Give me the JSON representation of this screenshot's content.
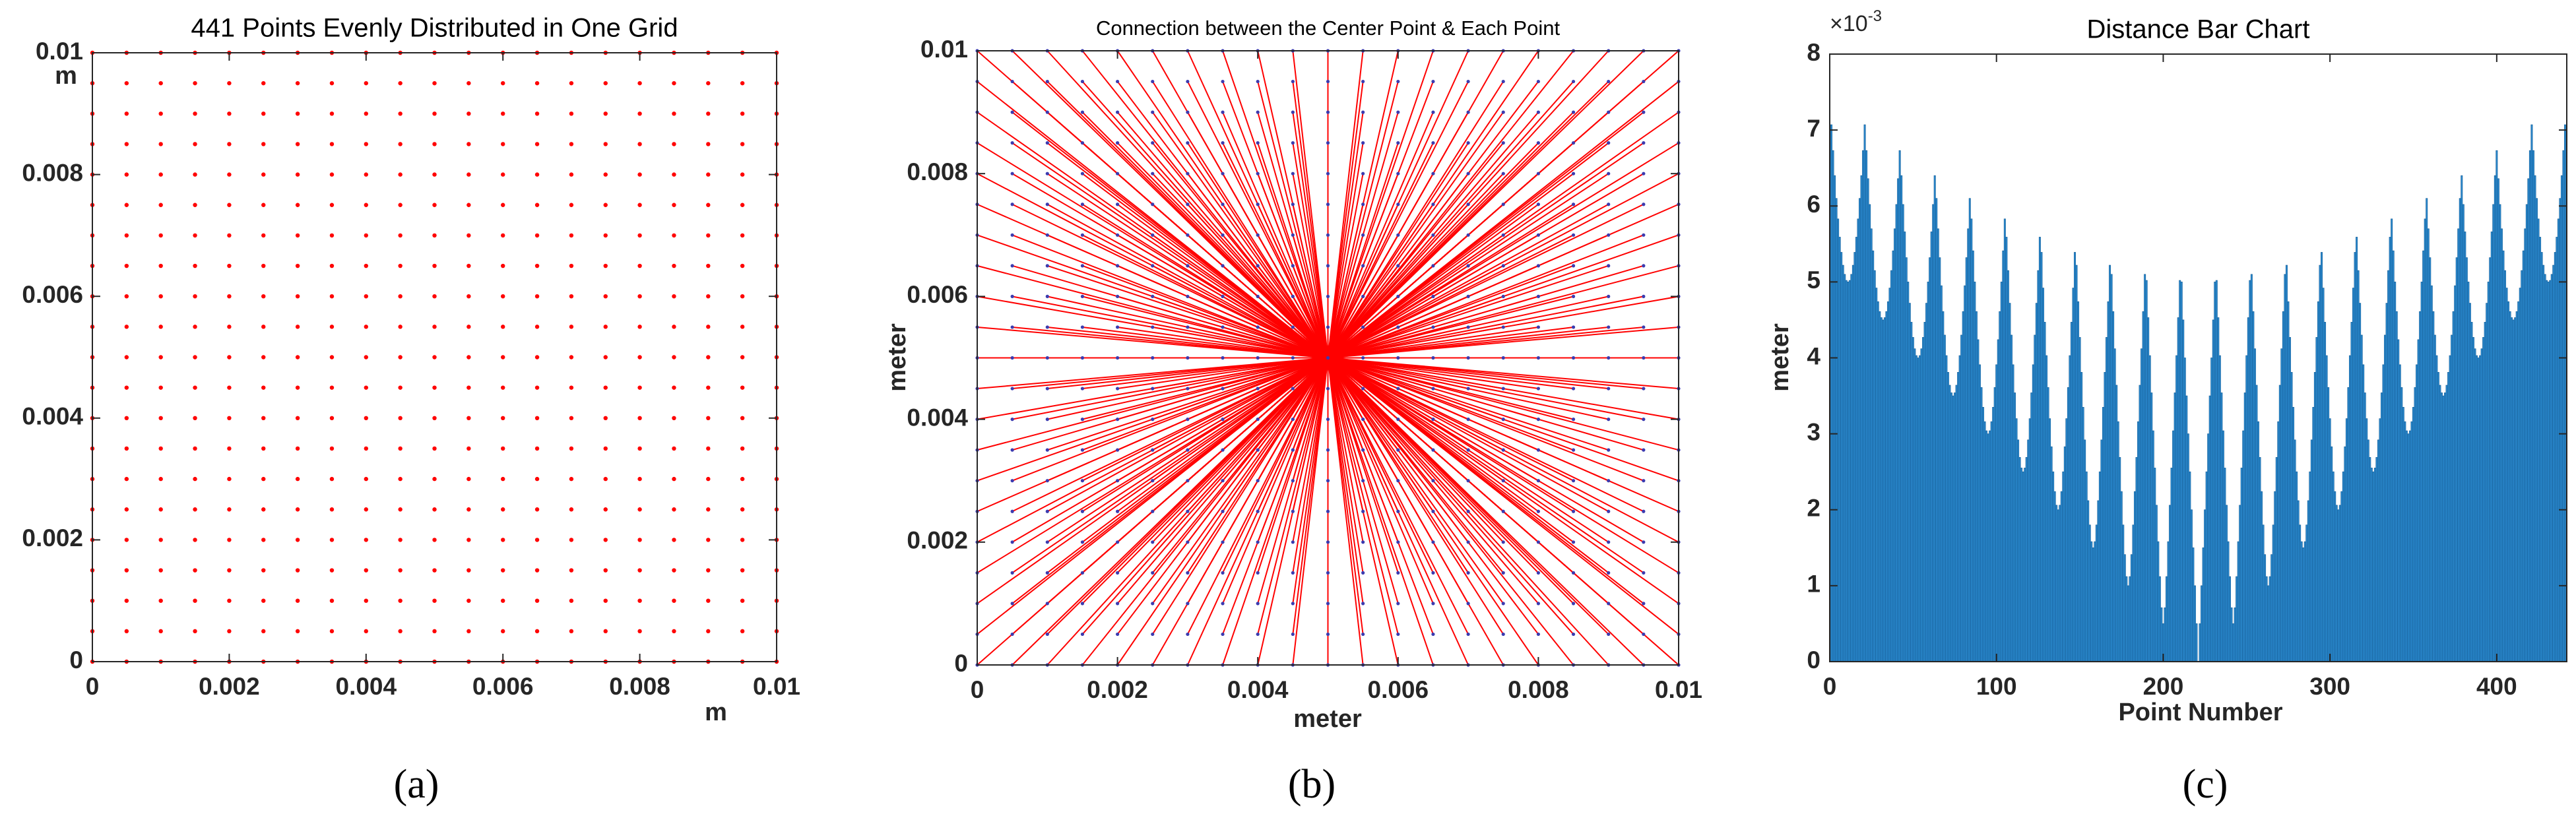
{
  "chart_data": [
    {
      "type": "scatter",
      "title": "441 Points Evenly Distributed in One Grid",
      "caption": "(a)",
      "xlabel": "m",
      "ylabel": "m",
      "grid_x": [
        0,
        0.0005,
        0.001,
        0.0015,
        0.002,
        0.0025,
        0.003,
        0.0035,
        0.004,
        0.0045,
        0.005,
        0.0055,
        0.006,
        0.0065,
        0.007,
        0.0075,
        0.008,
        0.0085,
        0.009,
        0.0095,
        0.01
      ],
      "grid_y": [
        0,
        0.0005,
        0.001,
        0.0015,
        0.002,
        0.0025,
        0.003,
        0.0035,
        0.004,
        0.0045,
        0.005,
        0.0055,
        0.006,
        0.0065,
        0.007,
        0.0075,
        0.008,
        0.0085,
        0.009,
        0.0095,
        0.01
      ],
      "color": "#ff0000",
      "xlim": [
        0,
        0.01
      ],
      "ylim": [
        0,
        0.01
      ],
      "xticks": [
        0,
        0.002,
        0.004,
        0.006,
        0.008,
        0.01
      ],
      "yticks": [
        0,
        0.002,
        0.004,
        0.006,
        0.008,
        0.01
      ]
    },
    {
      "type": "radial",
      "title": "Connection between the Center Point & Each Point",
      "caption": "(b)",
      "xlabel": "meter",
      "ylabel": "meter",
      "center": {
        "x": 0.005,
        "y": 0.005
      },
      "grid_x": [
        0,
        0.0005,
        0.001,
        0.0015,
        0.002,
        0.0025,
        0.003,
        0.0035,
        0.004,
        0.0045,
        0.005,
        0.0055,
        0.006,
        0.0065,
        0.007,
        0.0075,
        0.008,
        0.0085,
        0.009,
        0.0095,
        0.01
      ],
      "grid_y": [
        0,
        0.0005,
        0.001,
        0.0015,
        0.002,
        0.0025,
        0.003,
        0.0035,
        0.004,
        0.0045,
        0.005,
        0.0055,
        0.006,
        0.0065,
        0.007,
        0.0075,
        0.008,
        0.0085,
        0.009,
        0.0095,
        0.01
      ],
      "line_color": "#ff0000",
      "point_color": "#3b3bb0",
      "xlim": [
        0,
        0.01
      ],
      "ylim": [
        0,
        0.01
      ],
      "xticks": [
        0,
        0.002,
        0.004,
        0.006,
        0.008,
        0.01
      ],
      "yticks": [
        0,
        0.002,
        0.004,
        0.006,
        0.008,
        0.01
      ]
    },
    {
      "type": "bar",
      "title": "Distance Bar Chart",
      "caption": "(c)",
      "xlabel": "Point Number",
      "ylabel": "meter",
      "y_exponent": {
        "base": "×10",
        "power": "-3"
      },
      "color": "#2b8bd0",
      "edge_color": "#17609a",
      "xlim": [
        0,
        442
      ],
      "ylim": [
        0,
        8
      ],
      "xticks": [
        0,
        100,
        200,
        300,
        400
      ],
      "yticks": [
        0,
        1,
        2,
        3,
        4,
        5,
        6,
        7,
        8
      ],
      "x": [
        1,
        2,
        3,
        4,
        5,
        6,
        7,
        8,
        9,
        10,
        11,
        12,
        13,
        14,
        15,
        16,
        17,
        18,
        19,
        20,
        21,
        22,
        23,
        24,
        25,
        26,
        27,
        28,
        29,
        30,
        31,
        32,
        33,
        34,
        35,
        36,
        37,
        38,
        39,
        40,
        41,
        42,
        43,
        44,
        45,
        46,
        47,
        48,
        49,
        50,
        51,
        52,
        53,
        54,
        55,
        56,
        57,
        58,
        59,
        60,
        61,
        62,
        63,
        64,
        65,
        66,
        67,
        68,
        69,
        70,
        71,
        72,
        73,
        74,
        75,
        76,
        77,
        78,
        79,
        80,
        81,
        82,
        83,
        84,
        85,
        86,
        87,
        88,
        89,
        90,
        91,
        92,
        93,
        94,
        95,
        96,
        97,
        98,
        99,
        100,
        101,
        102,
        103,
        104,
        105,
        106,
        107,
        108,
        109,
        110,
        111,
        112,
        113,
        114,
        115,
        116,
        117,
        118,
        119,
        120,
        121,
        122,
        123,
        124,
        125,
        126,
        127,
        128,
        129,
        130,
        131,
        132,
        133,
        134,
        135,
        136,
        137,
        138,
        139,
        140,
        141,
        142,
        143,
        144,
        145,
        146,
        147,
        148,
        149,
        150,
        151,
        152,
        153,
        154,
        155,
        156,
        157,
        158,
        159,
        160,
        161,
        162,
        163,
        164,
        165,
        166,
        167,
        168,
        169,
        170,
        171,
        172,
        173,
        174,
        175,
        176,
        177,
        178,
        179,
        180,
        181,
        182,
        183,
        184,
        185,
        186,
        187,
        188,
        189,
        190,
        191,
        192,
        193,
        194,
        195,
        196,
        197,
        198,
        199,
        200,
        201,
        202,
        203,
        204,
        205,
        206,
        207,
        208,
        209,
        210,
        211,
        212,
        213,
        214,
        215,
        216,
        217,
        218,
        219,
        220,
        221,
        222,
        223,
        224,
        225,
        226,
        227,
        228,
        229,
        230,
        231,
        232,
        233,
        234,
        235,
        236,
        237,
        238,
        239,
        240,
        241,
        242,
        243,
        244,
        245,
        246,
        247,
        248,
        249,
        250,
        251,
        252,
        253,
        254,
        255,
        256,
        257,
        258,
        259,
        260,
        261,
        262,
        263,
        264,
        265,
        266,
        267,
        268,
        269,
        270,
        271,
        272,
        273,
        274,
        275,
        276,
        277,
        278,
        279,
        280,
        281,
        282,
        283,
        284,
        285,
        286,
        287,
        288,
        289,
        290,
        291,
        292,
        293,
        294,
        295,
        296,
        297,
        298,
        299,
        300,
        301,
        302,
        303,
        304,
        305,
        306,
        307,
        308,
        309,
        310,
        311,
        312,
        313,
        314,
        315,
        316,
        317,
        318,
        319,
        320,
        321,
        322,
        323,
        324,
        325,
        326,
        327,
        328,
        329,
        330,
        331,
        332,
        333,
        334,
        335,
        336,
        337,
        338,
        339,
        340,
        341,
        342,
        343,
        344,
        345,
        346,
        347,
        348,
        349,
        350,
        351,
        352,
        353,
        354,
        355,
        356,
        357,
        358,
        359,
        360,
        361,
        362,
        363,
        364,
        365,
        366,
        367,
        368,
        369,
        370,
        371,
        372,
        373,
        374,
        375,
        376,
        377,
        378,
        379,
        380,
        381,
        382,
        383,
        384,
        385,
        386,
        387,
        388,
        389,
        390,
        391,
        392,
        393,
        394,
        395,
        396,
        397,
        398,
        399,
        400,
        401,
        402,
        403,
        404,
        405,
        406,
        407,
        408,
        409,
        410,
        411,
        412,
        413,
        414,
        415,
        416,
        417,
        418,
        419,
        420,
        421,
        422,
        423,
        424,
        425,
        426,
        427,
        428,
        429,
        430,
        431,
        432,
        433,
        434,
        435,
        436,
        437,
        438,
        439,
        440,
        441
      ],
      "values": [
        7.07,
        6.73,
        6.4,
        6.1,
        5.83,
        5.59,
        5.39,
        5.22,
        5.1,
        5.02,
        5,
        5.02,
        5.1,
        5.22,
        5.39,
        5.59,
        5.83,
        6.1,
        6.4,
        6.73,
        7.07,
        6.73,
        6.36,
        6.02,
        5.7,
        5.41,
        5.15,
        4.92,
        4.74,
        4.61,
        4.53,
        4.5,
        4.53,
        4.61,
        4.74,
        4.92,
        5.15,
        5.41,
        5.7,
        6.02,
        6.36,
        6.73,
        6.4,
        6.02,
        5.66,
        5.32,
        5,
        4.72,
        4.47,
        4.27,
        4.12,
        4.03,
        4,
        4.03,
        4.12,
        4.27,
        4.47,
        4.72,
        5,
        5.32,
        5.66,
        6.02,
        6.4,
        6.1,
        5.7,
        5.32,
        4.95,
        4.61,
        4.3,
        4.03,
        3.81,
        3.64,
        3.54,
        3.5,
        3.54,
        3.64,
        3.81,
        4.03,
        4.3,
        4.61,
        4.95,
        5.32,
        5.7,
        6.1,
        5.83,
        5.41,
        5,
        4.61,
        4.24,
        3.91,
        3.61,
        3.35,
        3.16,
        3.04,
        3,
        3.04,
        3.16,
        3.35,
        3.61,
        3.91,
        4.24,
        4.61,
        5,
        5.41,
        5.83,
        5.59,
        5.15,
        4.72,
        4.3,
        3.91,
        3.54,
        3.2,
        2.92,
        2.69,
        2.55,
        2.5,
        2.55,
        2.69,
        2.92,
        3.2,
        3.54,
        3.91,
        4.3,
        4.72,
        5.15,
        5.59,
        5.39,
        4.92,
        4.47,
        4.03,
        3.61,
        3.2,
        2.83,
        2.5,
        2.24,
        2.06,
        2,
        2.06,
        2.24,
        2.5,
        2.83,
        3.2,
        3.61,
        4.03,
        4.47,
        4.92,
        5.39,
        5.22,
        4.74,
        4.27,
        3.81,
        3.35,
        2.92,
        2.5,
        2.12,
        1.8,
        1.58,
        1.5,
        1.58,
        1.8,
        2.12,
        2.5,
        2.92,
        3.35,
        3.81,
        4.27,
        4.74,
        5.22,
        5.1,
        4.61,
        4.12,
        3.64,
        3.16,
        2.69,
        2.24,
        1.8,
        1.41,
        1.12,
        1,
        1.12,
        1.41,
        1.8,
        2.24,
        2.69,
        3.16,
        3.64,
        4.12,
        4.61,
        5.1,
        5.02,
        4.53,
        4.03,
        3.54,
        3.04,
        2.55,
        2.06,
        1.58,
        1.12,
        0.71,
        0.5,
        0.71,
        1.12,
        1.58,
        2.06,
        2.55,
        3.04,
        3.54,
        4.03,
        4.53,
        5.02,
        5,
        4.5,
        4,
        3.5,
        3,
        2.5,
        2,
        1.5,
        1,
        0.5,
        0,
        0.5,
        1,
        1.5,
        2,
        2.5,
        3,
        3.5,
        4,
        4.5,
        5,
        5.02,
        4.53,
        4.03,
        3.54,
        3.04,
        2.55,
        2.06,
        1.58,
        1.12,
        0.71,
        0.5,
        0.71,
        1.12,
        1.58,
        2.06,
        2.55,
        3.04,
        3.54,
        4.03,
        4.53,
        5.02,
        5.1,
        4.61,
        4.12,
        3.64,
        3.16,
        2.69,
        2.24,
        1.8,
        1.41,
        1.12,
        1,
        1.12,
        1.41,
        1.8,
        2.24,
        2.69,
        3.16,
        3.64,
        4.12,
        4.61,
        5.1,
        5.22,
        4.74,
        4.27,
        3.81,
        3.35,
        2.92,
        2.5,
        2.12,
        1.8,
        1.58,
        1.5,
        1.58,
        1.8,
        2.12,
        2.5,
        2.92,
        3.35,
        3.81,
        4.27,
        4.74,
        5.22,
        5.39,
        4.92,
        4.47,
        4.03,
        3.61,
        3.2,
        2.83,
        2.5,
        2.24,
        2.06,
        2,
        2.06,
        2.24,
        2.5,
        2.83,
        3.2,
        3.61,
        4.03,
        4.47,
        4.92,
        5.39,
        5.59,
        5.15,
        4.72,
        4.3,
        3.91,
        3.54,
        3.2,
        2.92,
        2.69,
        2.55,
        2.5,
        2.55,
        2.69,
        2.92,
        3.2,
        3.54,
        3.91,
        4.3,
        4.72,
        5.15,
        5.59,
        5.83,
        5.41,
        5,
        4.61,
        4.24,
        3.91,
        3.61,
        3.35,
        3.16,
        3.04,
        3,
        3.04,
        3.16,
        3.35,
        3.61,
        3.91,
        4.24,
        4.61,
        5,
        5.41,
        5.83,
        6.1,
        5.7,
        5.32,
        4.95,
        4.61,
        4.3,
        4.03,
        3.81,
        3.64,
        3.54,
        3.5,
        3.54,
        3.64,
        3.81,
        4.03,
        4.3,
        4.61,
        4.95,
        5.32,
        5.7,
        6.1,
        6.4,
        6.02,
        5.66,
        5.32,
        5,
        4.72,
        4.47,
        4.27,
        4.12,
        4.03,
        4,
        4.03,
        4.12,
        4.27,
        4.47,
        4.72,
        5,
        5.32,
        5.66,
        6.02,
        6.4,
        6.73,
        6.36,
        6.02,
        5.7,
        5.41,
        5.15,
        4.92,
        4.74,
        4.61,
        4.53,
        4.5,
        4.53,
        4.61,
        4.74,
        4.92,
        5.15,
        5.41,
        5.7,
        6.02,
        6.36,
        6.73,
        7.07,
        6.73,
        6.4,
        6.1,
        5.83,
        5.59,
        5.39,
        5.22,
        5.1,
        5.02,
        5,
        5.02,
        5.1,
        5.22,
        5.39,
        5.59,
        5.83,
        6.1,
        6.4,
        6.73,
        7.07
      ]
    }
  ]
}
